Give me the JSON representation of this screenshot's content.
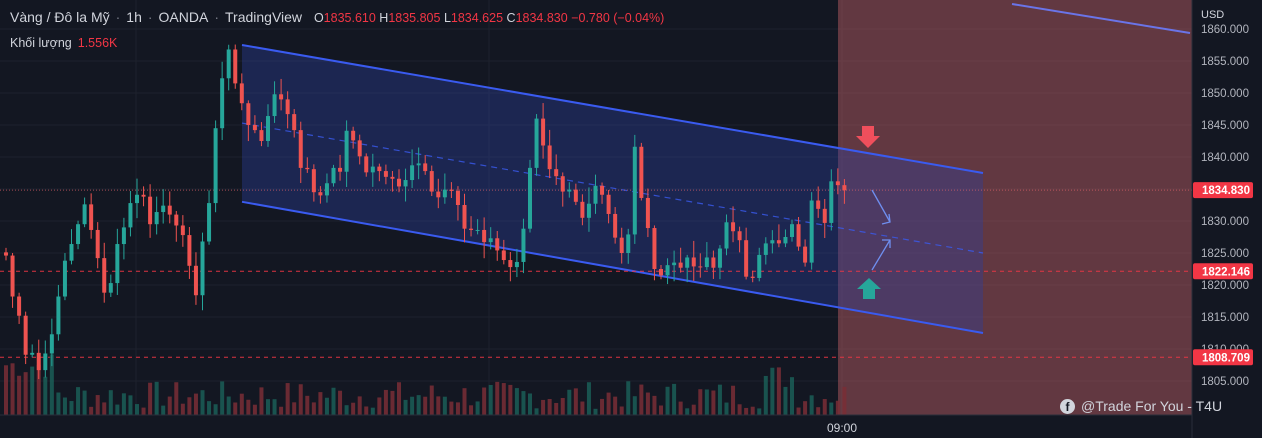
{
  "header": {
    "symbol": "Vàng / Đô la Mỹ",
    "interval": "1h",
    "broker": "OANDA",
    "platform": "TradingView",
    "open_label": "O",
    "open": "1835.610",
    "high_label": "H",
    "high": "1835.805",
    "low_label": "L",
    "low": "1834.625",
    "close_label": "C",
    "close": "1834.830",
    "change": "−0.780 (−0.04%)"
  },
  "volume": {
    "label": "Khối lượng",
    "value": "1.556K"
  },
  "axis": {
    "currency": "USD"
  },
  "watermark": "@Trade For You - T4U",
  "colors": {
    "up": "#26a69a",
    "down": "#ef5350",
    "channel": "#3a5bf0",
    "accent_red": "#f23645",
    "zone": "#b25a5f"
  },
  "chart_data": {
    "type": "candlestick",
    "ylim": [
      1803,
      1861
    ],
    "y_ticks": [
      "1805.000",
      "1810.000",
      "1815.000",
      "1820.000",
      "1825.000",
      "1830.000",
      "1835.000",
      "1840.000",
      "1845.000",
      "1850.000",
      "1855.000",
      "1860.000"
    ],
    "x_ticks": [
      "09:00"
    ],
    "price_levels": [
      {
        "value": 1834.83,
        "label": "1834.830",
        "style": "dotted"
      },
      {
        "value": 1822.146,
        "label": "1822.146",
        "style": "dashed"
      },
      {
        "value": 1808.709,
        "label": "1808.709",
        "style": "dashed"
      }
    ],
    "channel": {
      "upper": [
        1857.5,
        1837.5
      ],
      "lower": [
        1833.0,
        1812.5
      ],
      "mid": [
        1845.3,
        1825.0
      ]
    },
    "closes": [
      1824.6,
      1818.2,
      1815.2,
      1809.1,
      1809.4,
      1806.7,
      1809.3,
      1812.3,
      1818.2,
      1823.8,
      1826.4,
      1829.5,
      1832.6,
      1828.6,
      1824.2,
      1818.8,
      1820.3,
      1826.4,
      1829.0,
      1832.8,
      1834.1,
      1833.8,
      1829.5,
      1831.4,
      1832.4,
      1831.0,
      1829.3,
      1827.8,
      1823.0,
      1818.4,
      1826.8,
      1832.8,
      1844.5,
      1852.3,
      1856.8,
      1851.5,
      1848.4,
      1845.0,
      1844.2,
      1842.5,
      1846.4,
      1849.8,
      1849.0,
      1846.7,
      1844.2,
      1838.3,
      1838.1,
      1834.5,
      1834.0,
      1835.9,
      1838.3,
      1837.7,
      1844.1,
      1842.6,
      1840.1,
      1837.6,
      1838.5,
      1837.8,
      1836.9,
      1836.6,
      1835.4,
      1836.4,
      1838.7,
      1839.0,
      1837.8,
      1834.6,
      1833.7,
      1834.9,
      1834.7,
      1832.5,
      1828.8,
      1828.6,
      1828.6,
      1826.7,
      1827.3,
      1825.4,
      1823.9,
      1822.8,
      1823.6,
      1828.8,
      1838.3,
      1846.0,
      1841.8,
      1838.1,
      1837.0,
      1834.6,
      1834.9,
      1833.0,
      1830.5,
      1832.7,
      1835.5,
      1834.1,
      1831.1,
      1827.4,
      1825.0,
      1827.9,
      1841.6,
      1833.6,
      1828.9,
      1822.5,
      1821.5,
      1823.1,
      1823.5,
      1822.7,
      1824.3,
      1822.9,
      1822.8,
      1824.3,
      1822.7,
      1825.7,
      1829.8,
      1828.4,
      1827.0,
      1821.3,
      1821.1,
      1824.7,
      1826.5,
      1827.0,
      1826.5,
      1827.5,
      1829.5,
      1826.0,
      1823.5,
      1833.2,
      1831.9,
      1829.7,
      1836.2,
      1835.6,
      1834.8
    ],
    "volume_note": "per-bar volume shown at bottom"
  }
}
